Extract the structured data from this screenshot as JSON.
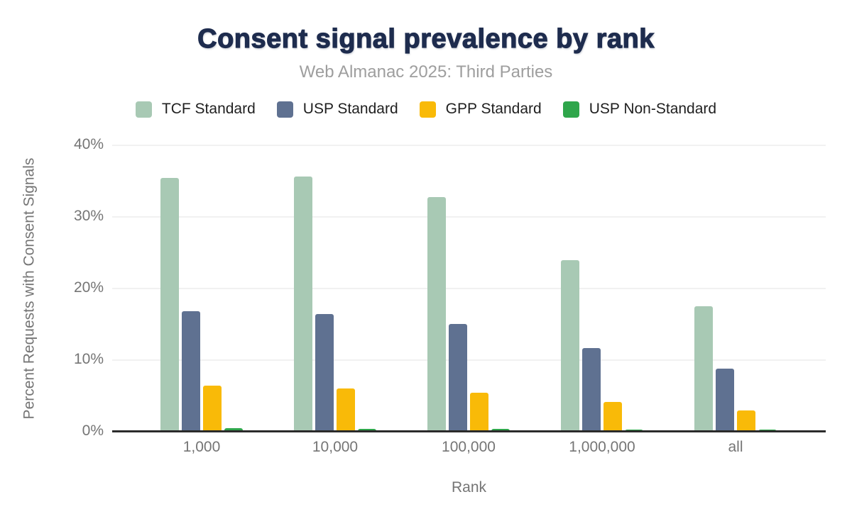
{
  "chart_data": {
    "type": "bar",
    "title": "Consent signal prevalence by rank",
    "subtitle": "Web Almanac 2025: Third Parties",
    "xlabel": "Rank",
    "ylabel": "Percent Requests with Consent Signals",
    "categories": [
      "1,000",
      "10,000",
      "100,000",
      "1,000,000",
      "all"
    ],
    "series": [
      {
        "name": "TCF Standard",
        "color": "#a8c9b4",
        "values": [
          35.4,
          35.6,
          32.8,
          24.0,
          17.5
        ]
      },
      {
        "name": "USP Standard",
        "color": "#5f7191",
        "values": [
          16.8,
          16.4,
          15.1,
          11.7,
          8.8
        ]
      },
      {
        "name": "GPP Standard",
        "color": "#f9ba08",
        "values": [
          6.4,
          6.0,
          5.4,
          4.2,
          3.0
        ]
      },
      {
        "name": "USP Non-Standard",
        "color": "#2fa64b",
        "values": [
          0.5,
          0.4,
          0.4,
          0.3,
          0.3
        ]
      }
    ],
    "ylim": [
      0,
      40
    ],
    "yticks": [
      {
        "value": 0,
        "label": "0%"
      },
      {
        "value": 10,
        "label": "10%"
      },
      {
        "value": 20,
        "label": "20%"
      },
      {
        "value": 30,
        "label": "30%"
      },
      {
        "value": 40,
        "label": "40%"
      }
    ],
    "grid": true,
    "legend_position": "top"
  },
  "colors": {
    "title": "#1e2c4e",
    "subtitle": "#9e9e9e",
    "axis_text": "#757575",
    "baseline": "#2b2b2b",
    "gridline": "#f1f1f1",
    "background": "#ffffff"
  }
}
